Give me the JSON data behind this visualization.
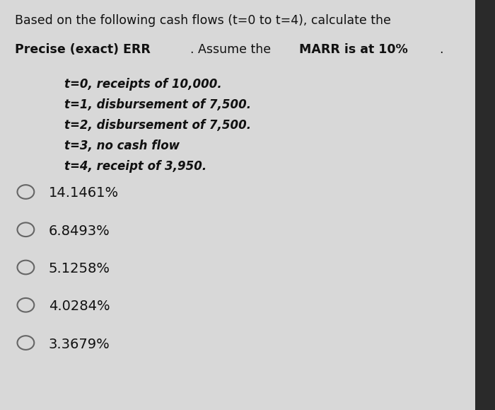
{
  "title_line1": "Based on the following cash flows (t=0 to t=4), calculate the",
  "title_line2_bold1": "Precise (exact) ERR",
  "title_line2_normal": ". Assume the ",
  "title_line2_bold2": "MARR is at 10%",
  "title_line2_end": ".",
  "cash_flows": [
    "t=0, receipts of 10,000.",
    "t=1, disbursement of 7,500.",
    "t=2, disbursement of 7,500.",
    "t=3, no cash flow",
    "t=4, receipt of 3,950."
  ],
  "options": [
    "14.1461%",
    "6.8493%",
    "5.1258%",
    "4.0284%",
    "3.3679%"
  ],
  "background_color": "#d8d8d8",
  "text_color": "#111111",
  "circle_color": "#666666",
  "title_fontsize": 12.5,
  "cashflow_fontsize": 12.0,
  "option_fontsize": 14.0,
  "right_bar_color": "#2a2a2a",
  "right_bar_width": 0.04
}
